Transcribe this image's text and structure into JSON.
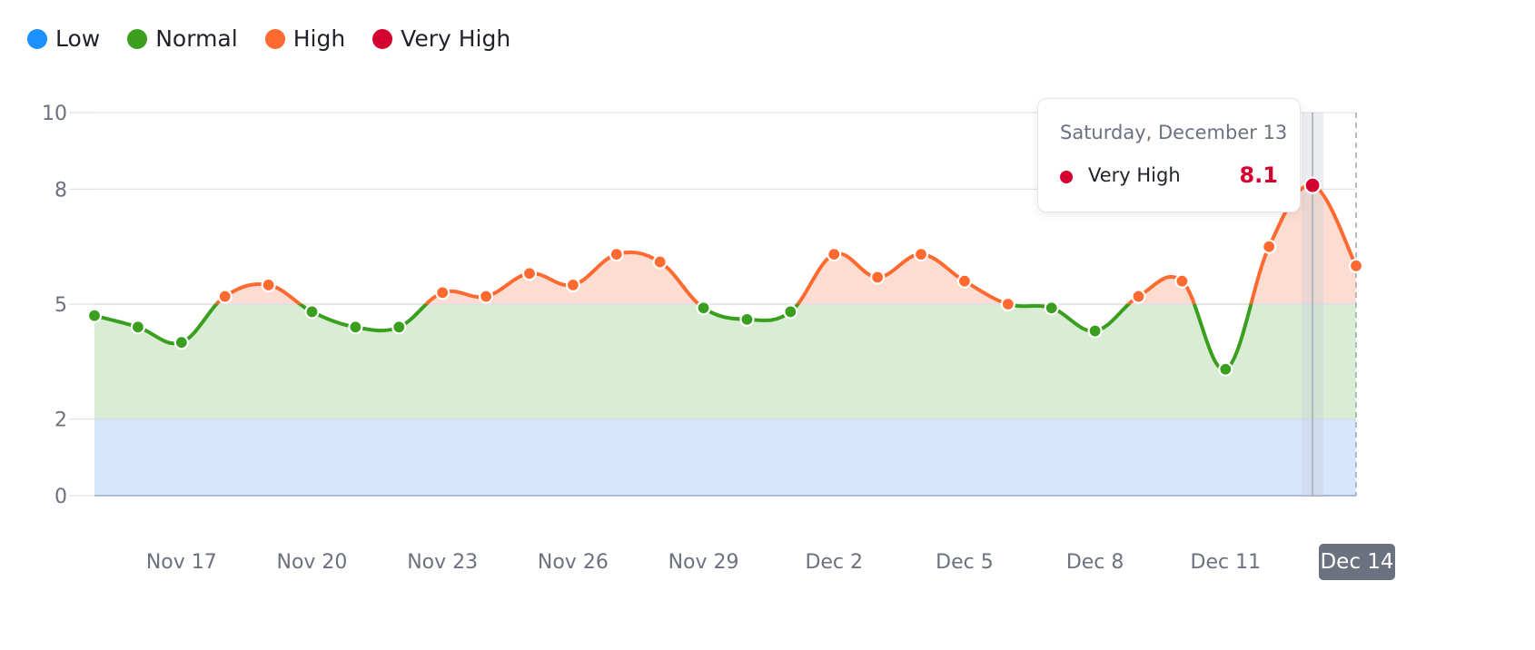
{
  "legend": [
    {
      "label": "Low",
      "color": "#1a91ff"
    },
    {
      "label": "Normal",
      "color": "#3a9f1f"
    },
    {
      "label": "High",
      "color": "#ff6a30"
    },
    {
      "label": "Very High",
      "color": "#d4002f"
    }
  ],
  "tooltip": {
    "date": "Saturday, December 13",
    "label": "Very High",
    "value": "8.1",
    "color": "#d4002f"
  },
  "chart_data": {
    "type": "line",
    "x_start": "Nov 15",
    "x_end": "Dec 14",
    "x_ticks": [
      "Nov 17",
      "Nov 20",
      "Nov 23",
      "Nov 26",
      "Nov 29",
      "Dec 2",
      "Dec 5",
      "Dec 8",
      "Dec 11",
      "Dec 14"
    ],
    "highlighted_tick": "Dec 14",
    "y_ticks": [
      "0",
      "2",
      "5",
      "8",
      "10"
    ],
    "ylim": [
      0,
      10
    ],
    "bands": [
      {
        "name": "Low",
        "from": 0,
        "to": 2,
        "color": "#d6e7fd"
      },
      {
        "name": "Normal",
        "from": 2,
        "to": 5,
        "color": "#d9edd4"
      },
      {
        "name": "High",
        "from": 5,
        "to": 10,
        "color": "#fddcd1"
      }
    ],
    "series": [
      {
        "name": "",
        "values": [
          4.7,
          4.4,
          4.0,
          5.2,
          5.5,
          4.8,
          4.4,
          4.4,
          5.3,
          5.2,
          5.8,
          5.5,
          6.3,
          6.1,
          4.9,
          4.6,
          4.8,
          6.3,
          5.7,
          6.3,
          5.6,
          5.0,
          4.9,
          4.3,
          5.2,
          5.6,
          3.3,
          6.5,
          8.1,
          6.0
        ]
      }
    ],
    "highlighted_index": 28,
    "thresholds": {
      "normal": 2,
      "high": 5,
      "very_high": 8
    },
    "grid": true
  }
}
